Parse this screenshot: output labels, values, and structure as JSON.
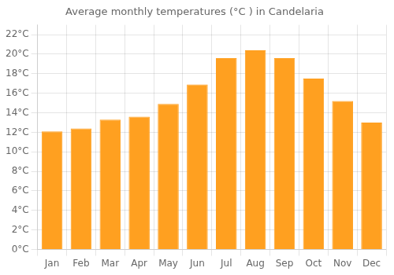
{
  "chart_data": {
    "type": "bar",
    "title": "Average monthly temperatures (°C ) in Candelaria",
    "categories": [
      "Jan",
      "Feb",
      "Mar",
      "Apr",
      "May",
      "Jun",
      "Jul",
      "Aug",
      "Sep",
      "Oct",
      "Nov",
      "Dec"
    ],
    "values": [
      12.1,
      12.4,
      13.3,
      13.6,
      14.9,
      16.9,
      19.6,
      20.4,
      19.6,
      17.5,
      15.2,
      13.0
    ],
    "color": "#FFA020",
    "ylim": [
      0,
      23
    ],
    "yticks": [
      {
        "value": 0,
        "label": "0°C"
      },
      {
        "value": 2,
        "label": "2°C"
      },
      {
        "value": 4,
        "label": "4°C"
      },
      {
        "value": 6,
        "label": "6°C"
      },
      {
        "value": 8,
        "label": "8°C"
      },
      {
        "value": 10,
        "label": "10°C"
      },
      {
        "value": 12,
        "label": "12°C"
      },
      {
        "value": 14,
        "label": "14°C"
      },
      {
        "value": 16,
        "label": "16°C"
      },
      {
        "value": 18,
        "label": "18°C"
      },
      {
        "value": 20,
        "label": "20°C"
      },
      {
        "value": 22,
        "label": "22°C"
      }
    ],
    "grid": true
  }
}
